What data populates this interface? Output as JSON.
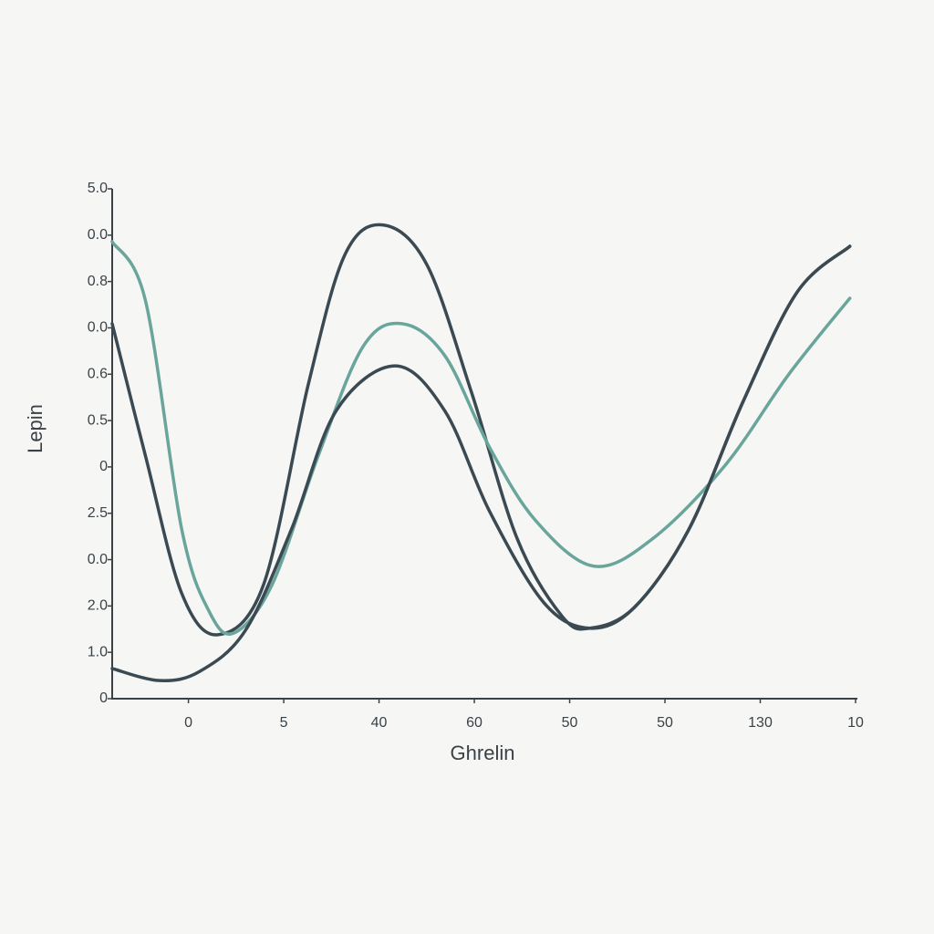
{
  "chart_data": {
    "type": "line",
    "x_label": "Ghrelin",
    "y_label": "Lepin",
    "xlim": [
      -0.8,
      7
    ],
    "ylim": [
      0,
      11
    ],
    "xticks": [
      {
        "value": 0,
        "label": "0"
      },
      {
        "value": 1,
        "label": "5"
      },
      {
        "value": 2,
        "label": "40"
      },
      {
        "value": 3,
        "label": "60"
      },
      {
        "value": 4,
        "label": "50"
      },
      {
        "value": 5,
        "label": "50"
      },
      {
        "value": 6,
        "label": "130"
      },
      {
        "value": 7,
        "label": "10"
      }
    ],
    "yticks": [
      {
        "value": 0,
        "label": "0"
      },
      {
        "value": 1,
        "label": "1.0"
      },
      {
        "value": 2,
        "label": "2.0"
      },
      {
        "value": 3,
        "label": "0.0"
      },
      {
        "value": 4,
        "label": "2.5"
      },
      {
        "value": 5,
        "label": "0"
      },
      {
        "value": 6,
        "label": "0.5"
      },
      {
        "value": 7,
        "label": "0.6"
      },
      {
        "value": 8,
        "label": "0.0"
      },
      {
        "value": 9,
        "label": "0.8"
      },
      {
        "value": 10,
        "label": "0.0"
      },
      {
        "value": 11,
        "label": "5.0"
      }
    ],
    "series": [
      {
        "color": "#3b4a52",
        "x": [
          -0.8,
          -0.45,
          -0.07,
          0.31,
          0.79,
          1.26,
          1.64,
          2.04,
          2.5,
          2.97,
          3.45,
          3.92,
          4.21,
          4.68,
          5.25,
          5.82,
          6.39,
          6.94
        ],
        "values": [
          8.09,
          5.23,
          2.27,
          1.38,
          2.47,
          6.8,
          9.57,
          10.22,
          9.37,
          6.61,
          3.45,
          1.78,
          1.52,
          1.97,
          3.65,
          6.41,
          8.78,
          9.76
        ]
      },
      {
        "color": "#6aa59c",
        "x": [
          -0.8,
          -0.45,
          -0.07,
          0.22,
          0.48,
          0.88,
          1.36,
          1.83,
          2.24,
          2.69,
          3.16,
          3.64,
          4.25,
          4.87,
          5.63,
          6.3,
          6.94
        ],
        "values": [
          9.86,
          8.58,
          3.65,
          1.87,
          1.42,
          2.47,
          5.23,
          7.59,
          8.09,
          7.4,
          5.42,
          3.85,
          2.86,
          3.45,
          5.03,
          7.0,
          8.64
        ]
      },
      {
        "color": "#3b4a52",
        "x": [
          -0.8,
          -0.3,
          0.12,
          0.6,
          1.08,
          1.55,
          2.17,
          2.69,
          3.16,
          3.73,
          4.21,
          4.68,
          5.25,
          5.82,
          6.39,
          6.94
        ],
        "values": [
          0.65,
          0.39,
          0.59,
          1.48,
          3.65,
          6.21,
          7.18,
          6.21,
          4.04,
          2.07,
          1.52,
          1.97,
          3.65,
          6.41,
          8.78,
          9.76
        ]
      }
    ]
  }
}
